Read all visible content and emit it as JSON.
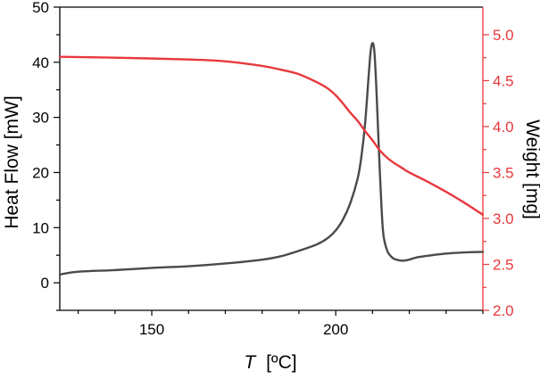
{
  "chart_data": {
    "type": "line",
    "xlabel_var": "T",
    "xlabel_unit": "[ºC]",
    "ylabel_left": "Heat Flow [mW]",
    "ylabel_right": "Weight [mg]",
    "xlim": [
      125,
      240
    ],
    "ylim_left": [
      -5,
      50
    ],
    "ylim_right": [
      2.0,
      5.3
    ],
    "x_ticks": [
      150,
      200
    ],
    "y_ticks_left": [
      0,
      10,
      20,
      30,
      40,
      50
    ],
    "y_ticks_right": [
      "2.0",
      "2.5",
      "3.0",
      "3.5",
      "4.0",
      "4.5",
      "5.0"
    ],
    "colors": {
      "heat_flow": "#4a4a4a",
      "weight": "#e8383d",
      "axis": "#000000"
    },
    "series": [
      {
        "axis": "left",
        "x": [
          125,
          130,
          140,
          150,
          160,
          170,
          180,
          185,
          190,
          195,
          198,
          200,
          202,
          204,
          206,
          207,
          208,
          209,
          209.5,
          210,
          210.5,
          211,
          211.5,
          212,
          212.5,
          213,
          214,
          215,
          216,
          218,
          220,
          222,
          225,
          230,
          235,
          240
        ],
        "values": [
          1.5,
          2.0,
          2.3,
          2.7,
          3.0,
          3.5,
          4.2,
          4.8,
          5.8,
          7.0,
          8.2,
          9.5,
          11.5,
          14.5,
          19.0,
          23.0,
          29.0,
          38.0,
          42.0,
          43.5,
          42.0,
          36.0,
          28.0,
          20.0,
          13.0,
          8.5,
          5.8,
          4.8,
          4.3,
          4.0,
          4.2,
          4.6,
          4.9,
          5.3,
          5.5,
          5.6
        ]
      },
      {
        "axis": "right",
        "x": [
          125,
          140,
          160,
          170,
          180,
          185,
          190,
          195,
          198,
          200,
          202,
          204,
          206,
          208,
          210,
          212,
          214,
          216,
          218,
          220,
          225,
          230,
          235,
          240
        ],
        "values": [
          4.76,
          4.75,
          4.73,
          4.71,
          4.66,
          4.62,
          4.57,
          4.48,
          4.41,
          4.34,
          4.25,
          4.15,
          4.06,
          3.95,
          3.85,
          3.74,
          3.66,
          3.6,
          3.55,
          3.5,
          3.4,
          3.29,
          3.17,
          3.04
        ]
      }
    ]
  }
}
